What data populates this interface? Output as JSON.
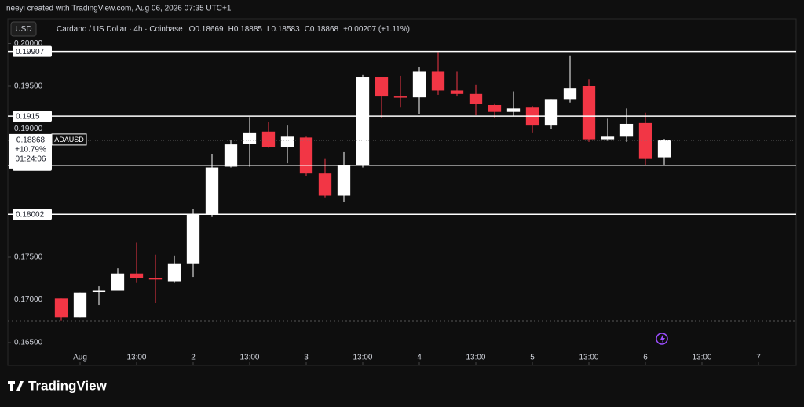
{
  "chart_data": {
    "type": "candlestick",
    "watermark": "neeyi created with TradingView.com, Aug 06, 2026 07:35 UTC+1",
    "currency": "USD",
    "title": "Cardano / US Dollar · 4h · Coinbase",
    "ohlc_keys": [
      "O",
      "H",
      "L",
      "C"
    ],
    "change": "+0.00207 (+1.11%)",
    "symbol": "ADAUSD",
    "change_pct": "+10.79%",
    "countdown": "01:24:06",
    "brand": "TradingView",
    "up_color": "#ffffff",
    "down_color": "#f23645",
    "level_color": "#ffffff",
    "open": [
      0.1702,
      0.168,
      0.171,
      0.1711,
      0.1731,
      0.1726,
      0.1722,
      0.1742,
      0.18,
      0.1856,
      0.1883,
      0.1897,
      0.1879,
      0.189,
      0.1848,
      0.1822,
      0.1858,
      0.1961,
      0.1938,
      0.1937,
      0.1967,
      0.1945,
      0.1941,
      0.1928,
      0.192,
      0.1925,
      0.1904,
      0.1935,
      0.195,
      0.1888,
      0.1891,
      0.1907,
      0.18669
    ],
    "high": [
      0.1702,
      0.1709,
      0.1716,
      0.1737,
      0.1767,
      0.1753,
      0.1752,
      0.1806,
      0.1871,
      0.1887,
      0.1914,
      0.1908,
      0.1904,
      0.1891,
      0.1865,
      0.1873,
      0.1963,
      0.1961,
      0.1962,
      0.1972,
      0.199,
      0.1967,
      0.1952,
      0.193,
      0.1944,
      0.1927,
      0.1935,
      0.1986,
      0.1958,
      0.1912,
      0.1924,
      0.1919,
      0.18885
    ],
    "low": [
      0.1676,
      0.168,
      0.1694,
      0.1711,
      0.172,
      0.1696,
      0.172,
      0.1727,
      0.1797,
      0.1855,
      0.1856,
      0.1878,
      0.186,
      0.1845,
      0.182,
      0.1815,
      0.1855,
      0.1913,
      0.1925,
      0.1917,
      0.194,
      0.1938,
      0.1916,
      0.1913,
      0.1915,
      0.1896,
      0.19,
      0.1931,
      0.1885,
      0.1886,
      0.1885,
      0.1858,
      0.18583
    ],
    "close": [
      0.168,
      0.1709,
      0.1711,
      0.1731,
      0.1726,
      0.1724,
      0.1742,
      0.18,
      0.1855,
      0.1882,
      0.1896,
      0.1879,
      0.1891,
      0.1848,
      0.1822,
      0.1858,
      0.1961,
      0.1938,
      0.1937,
      0.1967,
      0.1945,
      0.1941,
      0.1929,
      0.192,
      0.1924,
      0.1904,
      0.1935,
      0.1948,
      0.1888,
      0.1891,
      0.1906,
      0.1865,
      0.18868
    ],
    "levels": [
      0.19907,
      0.1915,
      0.18576,
      0.18002
    ],
    "ylim": [
      0.16234,
      0.20289
    ],
    "yticks": [
      {
        "value": 0.165,
        "label": "0.16500"
      },
      {
        "value": 0.17,
        "label": "0.17000"
      },
      {
        "value": 0.175,
        "label": "0.17500"
      },
      {
        "value": 0.19,
        "label": "0.19000"
      },
      {
        "value": 0.195,
        "label": "0.19500"
      },
      {
        "value": 0.2,
        "label": "0.20000"
      }
    ],
    "xlim": [
      -2.833,
      39
    ],
    "xticks": [
      {
        "value": 1,
        "label": "Aug"
      },
      {
        "value": 4,
        "label": "13:00"
      },
      {
        "value": 7,
        "label": "2"
      },
      {
        "value": 10,
        "label": "13:00"
      },
      {
        "value": 13,
        "label": "3"
      },
      {
        "value": 16,
        "label": "13:00"
      },
      {
        "value": 19,
        "label": "4"
      },
      {
        "value": 22,
        "label": "13:00"
      },
      {
        "value": 25,
        "label": "5"
      },
      {
        "value": 28,
        "label": "13:00"
      },
      {
        "value": 31,
        "label": "6"
      },
      {
        "value": 34,
        "label": "13:00"
      },
      {
        "value": 37,
        "label": "7"
      }
    ]
  }
}
